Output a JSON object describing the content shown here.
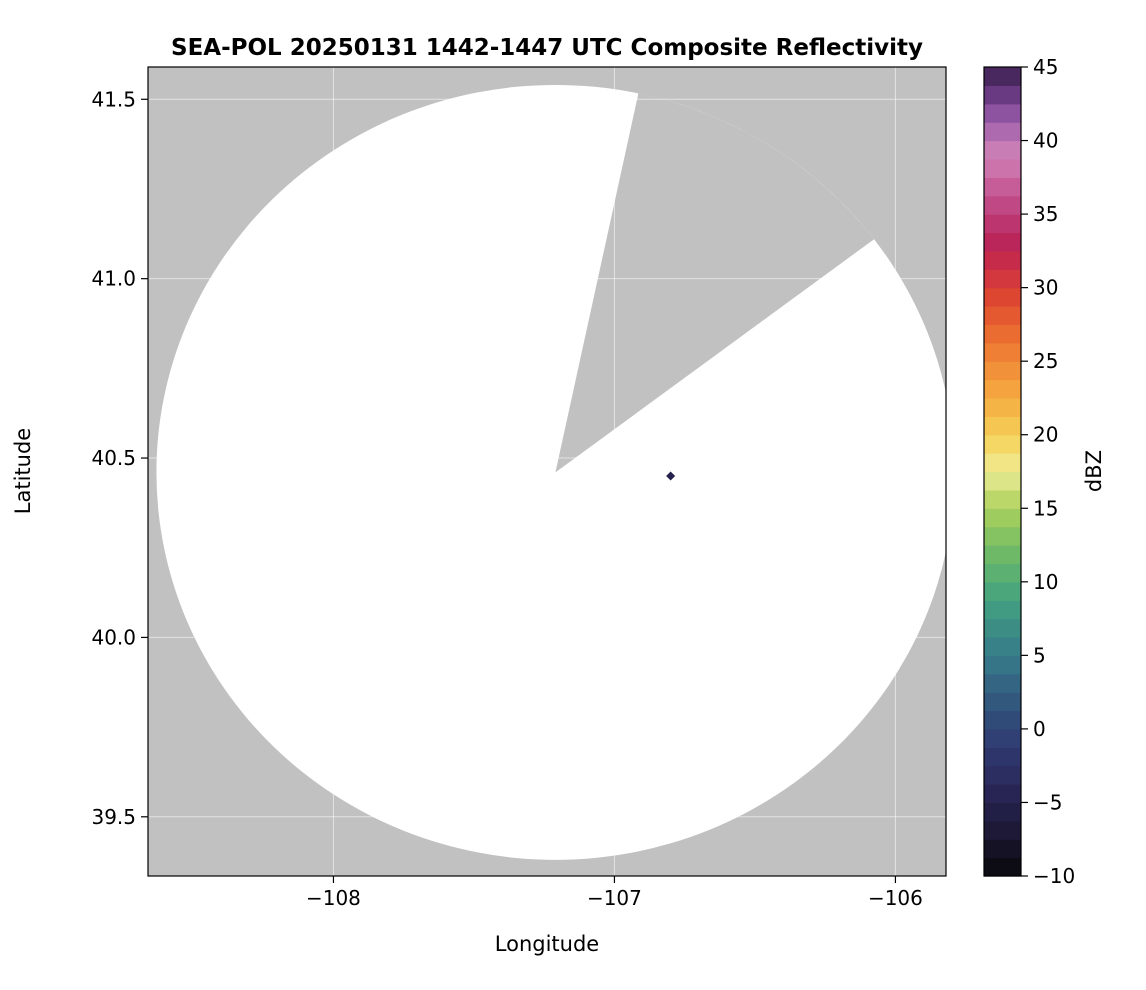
{
  "chart_data": {
    "type": "radar_composite_map",
    "title": "SEA-POL 20250131 1442-1447 UTC Composite Reflectivity",
    "xlabel": "Longitude",
    "ylabel": "Latitude",
    "xlim": [
      -108.66,
      -105.82
    ],
    "ylim": [
      39.335,
      41.59
    ],
    "xticks": {
      "values": [
        -108,
        -107,
        -106
      ],
      "labels": [
        "−108",
        "−107",
        "−106"
      ]
    },
    "yticks": {
      "values": [
        39.5,
        40.0,
        40.5,
        41.0,
        41.5
      ],
      "labels": [
        "39.5",
        "40.0",
        "40.5",
        "41.0",
        "41.5"
      ]
    },
    "grid": true,
    "legend": "none",
    "map": {
      "masked_color": "#c1c1c1",
      "clear_air_color": "#ffffff",
      "radar_center": {
        "lon": -107.21,
        "lat": 40.46
      },
      "coverage_radius_deg": {
        "lon": 1.42,
        "lat": 1.08
      },
      "blocked_sector_azimuth_deg": [
        12,
        53
      ]
    },
    "echoes": [
      {
        "lon": -106.8,
        "lat": 40.45,
        "dbz": -5
      }
    ],
    "colorbar": {
      "label": "dBZ",
      "min": -10,
      "max": 45,
      "tick_values": [
        -10,
        -5,
        0,
        5,
        10,
        15,
        20,
        25,
        30,
        35,
        40,
        45
      ],
      "tick_labels": [
        "−10",
        "−5",
        "0",
        "5",
        "10",
        "15",
        "20",
        "25",
        "30",
        "35",
        "40",
        "45"
      ],
      "segments": 44,
      "stops": [
        [
          -10,
          "#09080a"
        ],
        [
          -7,
          "#1c1836"
        ],
        [
          -4,
          "#2a2758"
        ],
        [
          -1,
          "#303b72"
        ],
        [
          2,
          "#32597f"
        ],
        [
          5,
          "#377b89"
        ],
        [
          8,
          "#3f9a83"
        ],
        [
          10,
          "#52ab77"
        ],
        [
          12,
          "#6fba67"
        ],
        [
          14,
          "#96c95c"
        ],
        [
          16,
          "#c3da6c"
        ],
        [
          17.5,
          "#eeec9a"
        ],
        [
          19,
          "#f4dc6b"
        ],
        [
          21,
          "#f6c14d"
        ],
        [
          23,
          "#f4a53e"
        ],
        [
          25,
          "#f08837"
        ],
        [
          27,
          "#ea6a31"
        ],
        [
          29,
          "#e04b2e"
        ],
        [
          31,
          "#cf3340"
        ],
        [
          33,
          "#ba2457"
        ],
        [
          35,
          "#bd3d79"
        ],
        [
          37,
          "#c75f9b"
        ],
        [
          39,
          "#d183b7"
        ],
        [
          40.5,
          "#b06cb0"
        ],
        [
          42,
          "#8a509e"
        ],
        [
          43.5,
          "#5e3377"
        ],
        [
          45,
          "#3a1f4e"
        ]
      ]
    }
  }
}
